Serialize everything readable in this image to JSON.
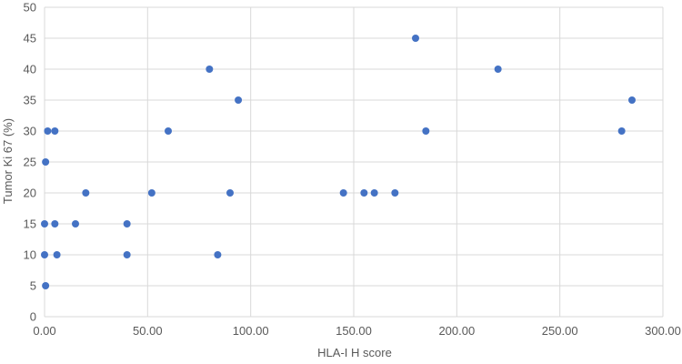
{
  "chart_data": {
    "type": "scatter",
    "title": "",
    "xlabel": "HLA-I H score",
    "ylabel": "Tumor Ki 67 (%)",
    "xlim": [
      0,
      300
    ],
    "ylim": [
      0,
      50
    ],
    "x_ticks": [
      "0.00",
      "50.00",
      "100.00",
      "150.00",
      "200.00",
      "250.00",
      "300.00"
    ],
    "y_ticks": [
      "0",
      "5",
      "10",
      "15",
      "20",
      "25",
      "30",
      "35",
      "40",
      "45",
      "50"
    ],
    "grid": true,
    "legend": "none",
    "marker_color": "#4472c4",
    "series": [
      {
        "points": [
          {
            "x": 0.5,
            "y": 5
          },
          {
            "x": 0,
            "y": 10
          },
          {
            "x": 0,
            "y": 15
          },
          {
            "x": 0.5,
            "y": 25
          },
          {
            "x": 1.5,
            "y": 30
          },
          {
            "x": 5,
            "y": 30
          },
          {
            "x": 5,
            "y": 15
          },
          {
            "x": 6,
            "y": 10
          },
          {
            "x": 15,
            "y": 15
          },
          {
            "x": 20,
            "y": 20
          },
          {
            "x": 40,
            "y": 15
          },
          {
            "x": 40,
            "y": 10
          },
          {
            "x": 52,
            "y": 20
          },
          {
            "x": 60,
            "y": 30
          },
          {
            "x": 80,
            "y": 40
          },
          {
            "x": 84,
            "y": 10
          },
          {
            "x": 90,
            "y": 20
          },
          {
            "x": 94,
            "y": 35
          },
          {
            "x": 145,
            "y": 20
          },
          {
            "x": 155,
            "y": 20
          },
          {
            "x": 160,
            "y": 20
          },
          {
            "x": 170,
            "y": 20
          },
          {
            "x": 180,
            "y": 45
          },
          {
            "x": 185,
            "y": 30
          },
          {
            "x": 220,
            "y": 40
          },
          {
            "x": 280,
            "y": 30
          },
          {
            "x": 285,
            "y": 35
          }
        ]
      }
    ]
  }
}
